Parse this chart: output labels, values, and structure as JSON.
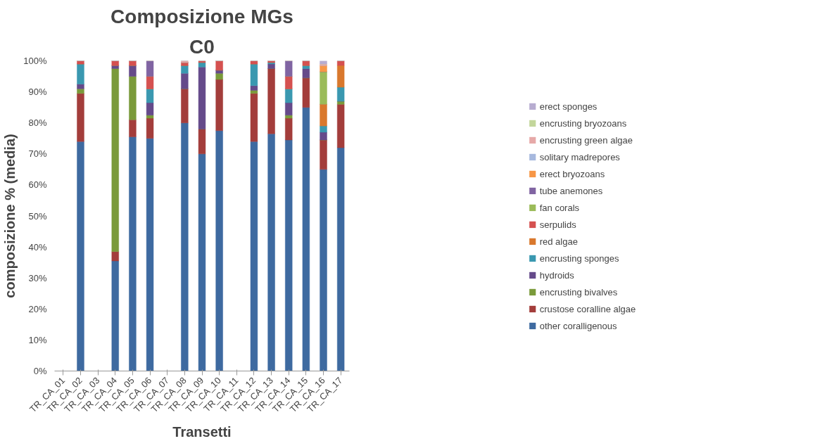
{
  "chart_data": {
    "type": "bar",
    "stacked": true,
    "title": "Composizione MGs",
    "subtitle": "C0",
    "xlabel": "Transetti",
    "ylabel": "composizione % (media)",
    "categories": [
      "TR_CA_01",
      "TR_CA_02",
      "TR_CA_03",
      "TR_CA_04",
      "TR_CA_05",
      "TR_CA_06",
      "TR_CA_07",
      "TR_CA_08",
      "TR_CA_09",
      "TR_CA_10",
      "TR_CA_11",
      "TR_CA_12",
      "TR_CA_13",
      "TR_CA_14",
      "TR_CA_15",
      "TR_CA_16",
      "TR_CA_17"
    ],
    "ylim": [
      0,
      100
    ],
    "yticks": [
      {
        "value": 0,
        "label": "0%"
      },
      {
        "value": 10,
        "label": "10%"
      },
      {
        "value": 20,
        "label": "20%"
      },
      {
        "value": 30,
        "label": "30%"
      },
      {
        "value": 40,
        "label": "40%"
      },
      {
        "value": 50,
        "label": "50%"
      },
      {
        "value": 60,
        "label": "60%"
      },
      {
        "value": 70,
        "label": "70%"
      },
      {
        "value": 80,
        "label": "80%"
      },
      {
        "value": 90,
        "label": "90%"
      },
      {
        "value": 100,
        "label": "100%"
      }
    ],
    "legend": "right",
    "grid": false,
    "series": [
      {
        "name": "other coralligenous",
        "color": "#3e6aa0",
        "values": [
          null,
          74,
          null,
          35.5,
          75.5,
          75,
          null,
          80,
          70,
          77.5,
          null,
          74,
          76.5,
          74.5,
          85,
          65,
          72
        ]
      },
      {
        "name": "crustose coralline algae",
        "color": "#a33d3b",
        "values": [
          null,
          15.5,
          null,
          3,
          5.5,
          6.5,
          null,
          11,
          8,
          16.5,
          null,
          15.5,
          21,
          7,
          9.5,
          9.5,
          14
        ]
      },
      {
        "name": "encrusting bivalves",
        "color": "#7a9a3a",
        "values": [
          null,
          1.5,
          null,
          59,
          14,
          1,
          null,
          0,
          0,
          2,
          null,
          1,
          0,
          1,
          0,
          0,
          1
        ]
      },
      {
        "name": "hydroids",
        "color": "#654a8a",
        "values": [
          null,
          1.5,
          null,
          1,
          3.5,
          4,
          null,
          5,
          20,
          1,
          null,
          1.5,
          1.5,
          4,
          3,
          2.5,
          0
        ]
      },
      {
        "name": "encrusting sponges",
        "color": "#3a98b0",
        "values": [
          null,
          6.5,
          null,
          0,
          0,
          4.5,
          null,
          2.5,
          1.5,
          0,
          null,
          7,
          0.5,
          4.5,
          1,
          2,
          4.5
        ]
      },
      {
        "name": "red algae",
        "color": "#d9782d",
        "values": [
          null,
          0,
          null,
          0,
          0,
          0,
          null,
          0,
          0,
          0,
          null,
          0,
          0,
          0,
          0,
          7,
          7
        ]
      },
      {
        "name": "serpulids",
        "color": "#d55150",
        "values": [
          null,
          1,
          null,
          1.5,
          1.5,
          4,
          null,
          1,
          0.5,
          3,
          null,
          1,
          0.5,
          4,
          1.5,
          0,
          1.5
        ]
      },
      {
        "name": "fan corals",
        "color": "#9bbb59",
        "values": [
          null,
          0,
          null,
          0,
          0,
          0,
          null,
          0,
          0,
          0,
          null,
          0,
          0,
          0,
          0,
          10.5,
          0
        ]
      },
      {
        "name": "tube anemones",
        "color": "#8064a2",
        "values": [
          null,
          0,
          null,
          0,
          0,
          5,
          null,
          0,
          0,
          0,
          null,
          0,
          0,
          5,
          0,
          0,
          0
        ]
      },
      {
        "name": "erect bryozoans",
        "color": "#f79646",
        "values": [
          null,
          0,
          null,
          0,
          0,
          0,
          null,
          0,
          0,
          0,
          null,
          0,
          0,
          0,
          0,
          2,
          0
        ]
      },
      {
        "name": "solitary madrepores",
        "color": "#a7b9de",
        "values": [
          null,
          0,
          null,
          0,
          0,
          0,
          null,
          0,
          0,
          0,
          null,
          0,
          0,
          0,
          0,
          0,
          0
        ]
      },
      {
        "name": "encrusting green algae",
        "color": "#e6a9a8",
        "values": [
          null,
          0,
          null,
          0,
          0,
          0,
          null,
          0.5,
          0,
          0,
          null,
          0,
          0,
          0,
          0,
          0.5,
          0
        ]
      },
      {
        "name": "encrusting bryozoans",
        "color": "#c3d69b",
        "values": [
          null,
          0,
          null,
          0,
          0,
          0,
          null,
          0,
          0,
          0,
          null,
          0,
          0,
          0,
          0,
          0,
          0
        ]
      },
      {
        "name": "erect sponges",
        "color": "#b7acd0",
        "values": [
          null,
          0,
          null,
          0,
          0,
          0,
          null,
          0,
          0,
          0,
          null,
          0,
          0,
          0,
          0,
          1,
          0
        ]
      }
    ]
  }
}
